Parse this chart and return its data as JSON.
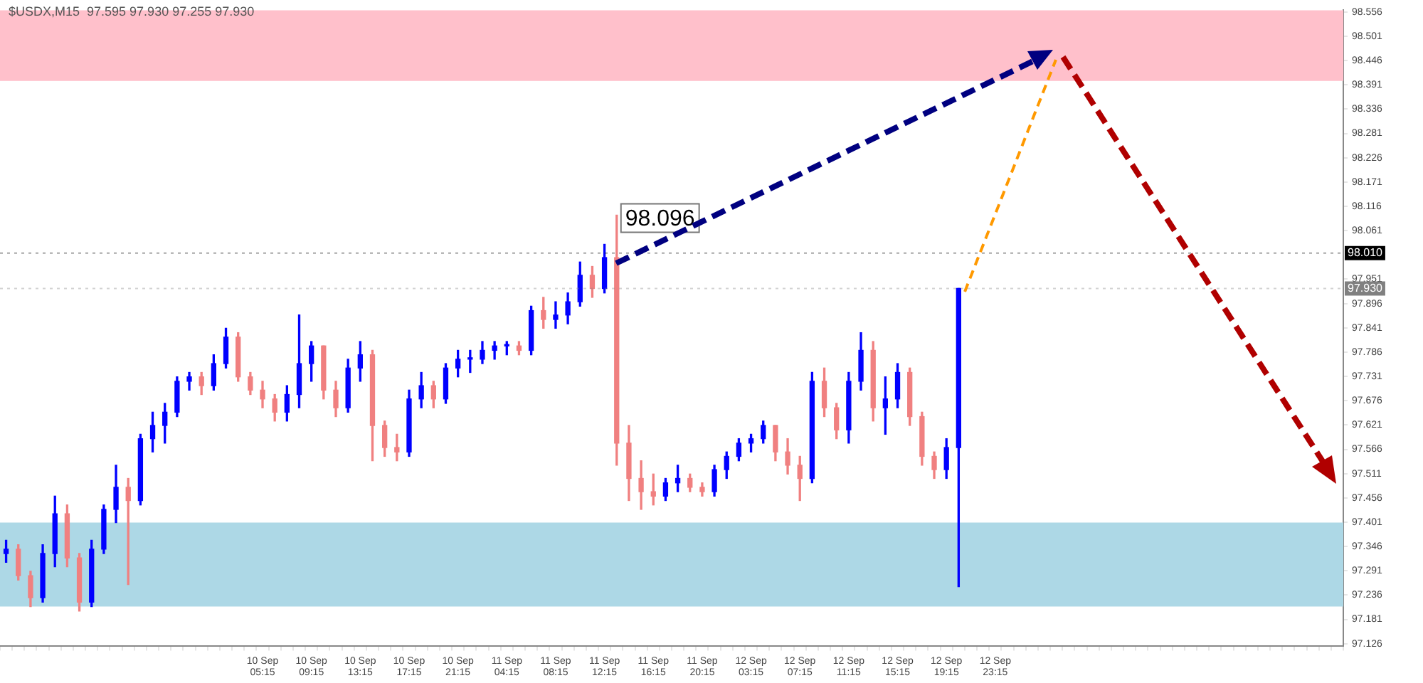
{
  "chart_data": {
    "type": "candlestick",
    "title": "$USDX,M15  97.595 97.930 97.255 97.930",
    "categories": [
      null,
      null,
      null,
      null,
      null,
      null,
      null,
      null,
      null,
      null,
      null,
      null,
      null,
      null,
      null,
      null,
      null,
      null,
      null,
      null,
      null,
      "10 Sep 05:15",
      null,
      null,
      null,
      "10 Sep 09:15",
      null,
      null,
      null,
      "10 Sep 13:15",
      null,
      null,
      null,
      "10 Sep 17:15",
      null,
      null,
      null,
      "10 Sep 21:15",
      null,
      null,
      null,
      "11 Sep 04:15",
      null,
      null,
      null,
      "11 Sep 08:15",
      null,
      null,
      null,
      "11 Sep 12:15",
      null,
      null,
      null,
      "11 Sep 16:15",
      null,
      null,
      null,
      "11 Sep 20:15",
      null,
      null,
      null,
      "12 Sep 03:15",
      null,
      null,
      null,
      "12 Sep 07:15",
      null,
      null,
      null,
      "12 Sep 11:15",
      null,
      null,
      null,
      "12 Sep 15:15",
      null,
      null,
      null,
      "12 Sep 19:15",
      null,
      null,
      null,
      "12 Sep 23:15",
      null,
      null,
      null,
      null,
      null,
      null,
      null,
      null,
      null,
      null,
      null,
      null,
      null,
      null,
      null,
      null,
      null,
      null,
      null,
      null,
      null,
      null,
      null,
      null,
      null,
      null,
      null,
      null
    ],
    "ohlc": [
      [
        97.33,
        97.36,
        97.31,
        97.34
      ],
      [
        97.34,
        97.35,
        97.27,
        97.28
      ],
      [
        97.28,
        97.29,
        97.21,
        97.23
      ],
      [
        97.23,
        97.35,
        97.22,
        97.33
      ],
      [
        97.33,
        97.46,
        97.3,
        97.42
      ],
      [
        97.42,
        97.44,
        97.3,
        97.32
      ],
      [
        97.32,
        97.33,
        97.2,
        97.22
      ],
      [
        97.22,
        97.36,
        97.21,
        97.34
      ],
      [
        97.34,
        97.44,
        97.33,
        97.43
      ],
      [
        97.43,
        97.53,
        97.4,
        97.48
      ],
      [
        97.48,
        97.5,
        97.26,
        97.45
      ],
      [
        97.45,
        97.6,
        97.44,
        97.59
      ],
      [
        97.59,
        97.65,
        97.56,
        97.62
      ],
      [
        97.62,
        97.67,
        97.58,
        97.65
      ],
      [
        97.65,
        97.73,
        97.64,
        97.72
      ],
      [
        97.72,
        97.74,
        97.7,
        97.73
      ],
      [
        97.73,
        97.74,
        97.69,
        97.71
      ],
      [
        97.71,
        97.78,
        97.7,
        97.76
      ],
      [
        97.76,
        97.84,
        97.75,
        97.82
      ],
      [
        97.82,
        97.83,
        97.72,
        97.73
      ],
      [
        97.73,
        97.74,
        97.69,
        97.7
      ],
      [
        97.7,
        97.72,
        97.66,
        97.68
      ],
      [
        97.68,
        97.69,
        97.63,
        97.65
      ],
      [
        97.65,
        97.71,
        97.63,
        97.69
      ],
      [
        97.69,
        97.87,
        97.66,
        97.76
      ],
      [
        97.76,
        97.81,
        97.72,
        97.8
      ],
      [
        97.8,
        97.8,
        97.68,
        97.7
      ],
      [
        97.7,
        97.72,
        97.64,
        97.66
      ],
      [
        97.66,
        97.77,
        97.65,
        97.75
      ],
      [
        97.75,
        97.81,
        97.72,
        97.78
      ],
      [
        97.78,
        97.79,
        97.54,
        97.62
      ],
      [
        97.62,
        97.63,
        97.55,
        97.57
      ],
      [
        97.57,
        97.6,
        97.54,
        97.56
      ],
      [
        97.56,
        97.7,
        97.55,
        97.68
      ],
      [
        97.68,
        97.74,
        97.66,
        97.71
      ],
      [
        97.71,
        97.72,
        97.66,
        97.68
      ],
      [
        97.68,
        97.76,
        97.67,
        97.75
      ],
      [
        97.75,
        97.79,
        97.73,
        97.77
      ],
      [
        97.77,
        97.79,
        97.74,
        97.77
      ],
      [
        97.77,
        97.81,
        97.76,
        97.79
      ],
      [
        97.79,
        97.81,
        97.77,
        97.8
      ],
      [
        97.8,
        97.81,
        97.78,
        97.8
      ],
      [
        97.8,
        97.81,
        97.78,
        97.79
      ],
      [
        97.79,
        97.89,
        97.78,
        97.88
      ],
      [
        97.88,
        97.91,
        97.84,
        97.86
      ],
      [
        97.86,
        97.9,
        97.84,
        97.87
      ],
      [
        97.87,
        97.92,
        97.85,
        97.9
      ],
      [
        97.9,
        97.99,
        97.89,
        97.96
      ],
      [
        97.96,
        97.98,
        97.91,
        97.93
      ],
      [
        97.93,
        98.03,
        97.92,
        98.0
      ],
      [
        98.0,
        98.096,
        97.53,
        97.58
      ],
      [
        97.58,
        97.62,
        97.45,
        97.5
      ],
      [
        97.5,
        97.54,
        97.43,
        97.47
      ],
      [
        97.47,
        97.51,
        97.44,
        97.46
      ],
      [
        97.46,
        97.5,
        97.45,
        97.49
      ],
      [
        97.49,
        97.53,
        97.47,
        97.5
      ],
      [
        97.5,
        97.51,
        97.47,
        97.48
      ],
      [
        97.48,
        97.49,
        97.46,
        97.47
      ],
      [
        97.47,
        97.53,
        97.46,
        97.52
      ],
      [
        97.52,
        97.56,
        97.5,
        97.55
      ],
      [
        97.55,
        97.59,
        97.54,
        97.58
      ],
      [
        97.58,
        97.6,
        97.56,
        97.59
      ],
      [
        97.59,
        97.63,
        97.58,
        97.62
      ],
      [
        97.62,
        97.62,
        97.54,
        97.56
      ],
      [
        97.56,
        97.59,
        97.51,
        97.53
      ],
      [
        97.53,
        97.55,
        97.45,
        97.5
      ],
      [
        97.5,
        97.74,
        97.49,
        97.72
      ],
      [
        97.72,
        97.75,
        97.64,
        97.66
      ],
      [
        97.66,
        97.67,
        97.59,
        97.61
      ],
      [
        97.61,
        97.74,
        97.58,
        97.72
      ],
      [
        97.72,
        97.83,
        97.7,
        97.79
      ],
      [
        97.79,
        97.81,
        97.63,
        97.66
      ],
      [
        97.66,
        97.73,
        97.6,
        97.68
      ],
      [
        97.68,
        97.76,
        97.66,
        97.74
      ],
      [
        97.74,
        97.75,
        97.62,
        97.64
      ],
      [
        97.64,
        97.65,
        97.53,
        97.55
      ],
      [
        97.55,
        97.56,
        97.5,
        97.52
      ],
      [
        97.52,
        97.59,
        97.5,
        97.57
      ],
      [
        97.57,
        97.93,
        97.255,
        97.93
      ],
      null,
      null,
      null,
      null,
      null,
      null,
      null,
      null,
      null,
      null,
      null,
      null,
      null,
      null,
      null,
      null,
      null,
      null,
      null,
      null,
      null,
      null,
      null,
      null,
      null,
      null,
      null,
      null,
      null,
      null,
      null
    ],
    "colors": [
      "#0000ff",
      "#f08080",
      "#f08080",
      "#0000ff",
      "#0000ff",
      "#f08080",
      "#f08080",
      "#0000ff",
      "#0000ff",
      "#0000ff",
      "#f08080",
      "#0000ff",
      "#0000ff",
      "#0000ff",
      "#0000ff",
      "#0000ff",
      "#f08080",
      "#0000ff",
      "#0000ff",
      "#f08080",
      "#f08080",
      "#f08080",
      "#f08080",
      "#0000ff",
      "#0000ff",
      "#0000ff",
      "#f08080",
      "#f08080",
      "#0000ff",
      "#0000ff",
      "#f08080",
      "#f08080",
      "#f08080",
      "#0000ff",
      "#0000ff",
      "#f08080",
      "#0000ff",
      "#0000ff",
      "#0000ff",
      "#0000ff",
      "#0000ff",
      "#0000ff",
      "#f08080",
      "#0000ff",
      "#f08080",
      "#0000ff",
      "#0000ff",
      "#0000ff",
      "#f08080",
      "#0000ff",
      "#f08080",
      "#f08080",
      "#f08080",
      "#f08080",
      "#0000ff",
      "#0000ff",
      "#f08080",
      "#f08080",
      "#0000ff",
      "#0000ff",
      "#0000ff",
      "#0000ff",
      "#0000ff",
      "#f08080",
      "#f08080",
      "#f08080",
      "#0000ff",
      "#f08080",
      "#f08080",
      "#0000ff",
      "#0000ff",
      "#f08080",
      "#0000ff",
      "#0000ff",
      "#f08080",
      "#f08080",
      "#f08080",
      "#0000ff",
      "#0000ff",
      null,
      null,
      null,
      null,
      null,
      null,
      null,
      null,
      null,
      null,
      null,
      null,
      null,
      null,
      null,
      null,
      null,
      null,
      null,
      null,
      null,
      null,
      null,
      null,
      null,
      null,
      null,
      null,
      null,
      null,
      null
    ],
    "ylim": [
      97.12,
      98.56
    ],
    "yticks": [
      97.126,
      97.181,
      97.236,
      97.291,
      97.346,
      97.401,
      97.456,
      97.511,
      97.566,
      97.621,
      97.676,
      97.731,
      97.786,
      97.841,
      97.896,
      97.951,
      98.061,
      98.116,
      98.171,
      98.226,
      98.281,
      98.336,
      98.391,
      98.446,
      98.501,
      98.556
    ],
    "bands": [
      {
        "axis": "y",
        "from": 98.4,
        "to": 98.56,
        "color": "#ffc0cb"
      },
      {
        "axis": "y",
        "from": 97.21,
        "to": 97.4,
        "color": "#add8e6"
      }
    ],
    "ref_lines": [
      {
        "axis": "y",
        "value": 98.01,
        "label": "98.010",
        "color": "#000000"
      },
      {
        "axis": "y",
        "value": 97.93,
        "label": "97.930",
        "color": "#808080"
      }
    ],
    "annotations": [
      "98.096"
    ]
  }
}
